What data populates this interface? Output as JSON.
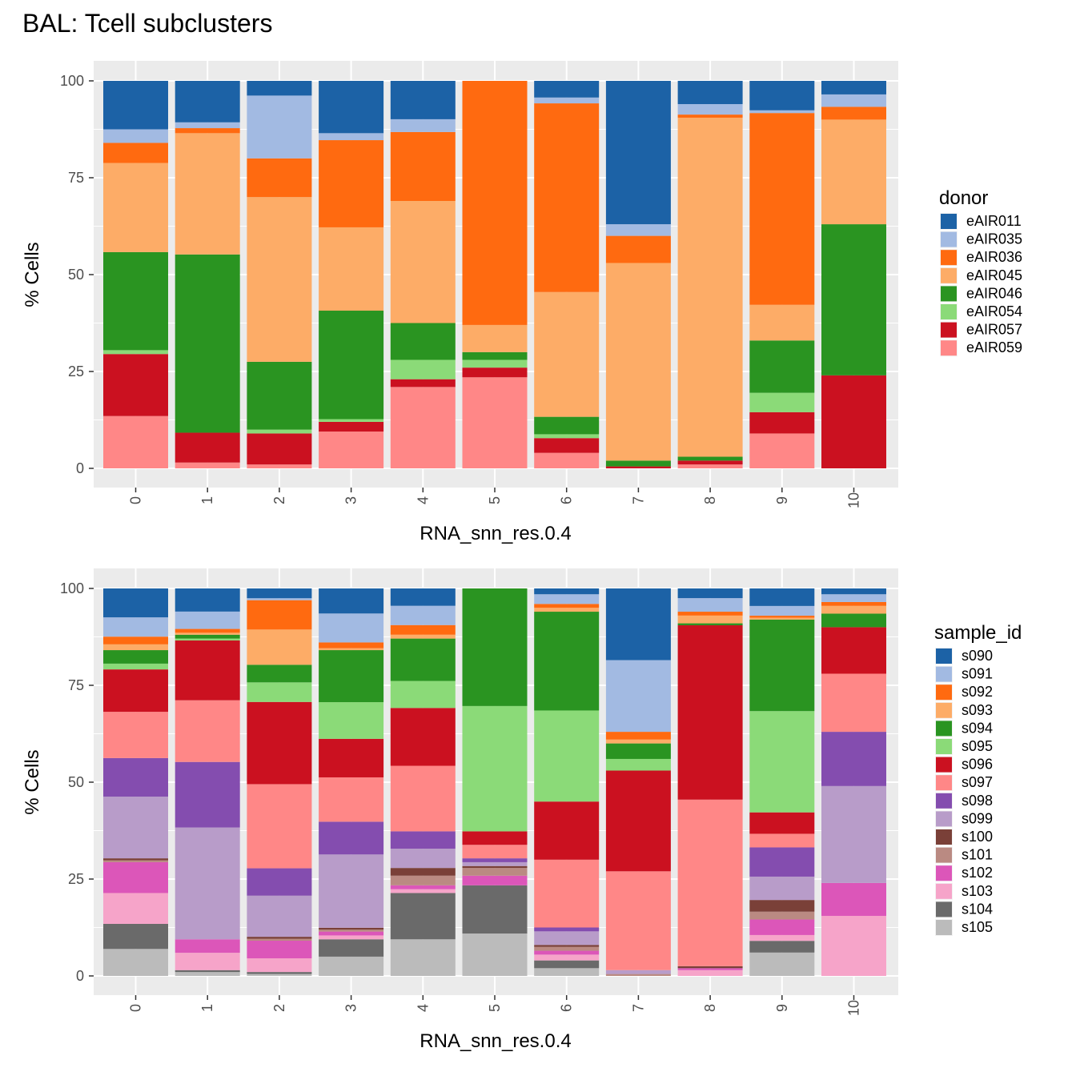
{
  "title": "BAL: Tcell subclusters",
  "charts": [
    {
      "type": "bar",
      "stacked": true,
      "xlabel": "RNA_snn_res.0.4",
      "ylabel": "% Cells",
      "ylim": [
        0,
        100
      ],
      "yticks": [
        "0",
        "25",
        "50",
        "75",
        "100"
      ],
      "categories": [
        "0",
        "1",
        "2",
        "3",
        "4",
        "5",
        "6",
        "7",
        "8",
        "9",
        "10"
      ],
      "legend_title": "donor",
      "legend_position": "right",
      "series": [
        {
          "name": "eAIR059",
          "color": "#FF8787",
          "values": [
            13.5,
            1.5,
            1.0,
            9.5,
            21.0,
            23.5,
            4.0,
            0.0,
            1.0,
            9.0,
            0.0
          ]
        },
        {
          "name": "eAIR057",
          "color": "#CB1120",
          "values": [
            16.0,
            7.7,
            8.0,
            2.5,
            2.0,
            2.5,
            3.8,
            0.5,
            1.0,
            5.5,
            24.0
          ]
        },
        {
          "name": "eAIR054",
          "color": "#8BDA78",
          "values": [
            1.0,
            0.0,
            1.0,
            0.7,
            5.0,
            2.0,
            1.0,
            0.0,
            0.0,
            5.0,
            0.0
          ]
        },
        {
          "name": "eAIR046",
          "color": "#2A9421",
          "values": [
            25.3,
            46.0,
            17.5,
            28.0,
            9.5,
            2.0,
            4.5,
            1.5,
            1.0,
            13.5,
            39.0
          ]
        },
        {
          "name": "eAIR045",
          "color": "#FDAC67",
          "values": [
            23.0,
            31.3,
            42.5,
            21.5,
            31.5,
            7.0,
            32.2,
            51.0,
            87.5,
            9.2,
            27.0
          ]
        },
        {
          "name": "eAIR036",
          "color": "#FF6A10",
          "values": [
            5.2,
            1.3,
            10.0,
            22.5,
            17.8,
            63.0,
            48.7,
            7.0,
            0.8,
            49.5,
            3.3
          ]
        },
        {
          "name": "eAIR035",
          "color": "#A2BAE2",
          "values": [
            3.5,
            1.5,
            16.2,
            1.8,
            3.3,
            0.0,
            1.5,
            3.0,
            2.7,
            0.7,
            3.2
          ]
        },
        {
          "name": "eAIR011",
          "color": "#1C62A6",
          "values": [
            12.5,
            10.7,
            3.8,
            13.5,
            9.9,
            0.0,
            4.3,
            37.0,
            6.0,
            7.6,
            3.5
          ]
        }
      ]
    },
    {
      "type": "bar",
      "stacked": true,
      "xlabel": "RNA_snn_res.0.4",
      "ylabel": "% Cells",
      "ylim": [
        0,
        100
      ],
      "yticks": [
        "0",
        "25",
        "50",
        "75",
        "100"
      ],
      "categories": [
        "0",
        "1",
        "2",
        "3",
        "4",
        "5",
        "6",
        "7",
        "8",
        "9",
        "10"
      ],
      "legend_title": "sample_id",
      "legend_position": "right",
      "series": [
        {
          "name": "s105",
          "color": "#BBBBBB",
          "values": [
            7.0,
            1.0,
            0.5,
            5.0,
            9.5,
            11.0,
            2.0,
            0.0,
            0.0,
            6.0,
            0.0
          ]
        },
        {
          "name": "s104",
          "color": "#6A6A6A",
          "values": [
            6.5,
            0.5,
            0.5,
            4.5,
            12.0,
            12.5,
            2.0,
            0.0,
            0.0,
            3.0,
            0.0
          ]
        },
        {
          "name": "s103",
          "color": "#F6A4C9",
          "values": [
            8.0,
            4.5,
            3.5,
            1.0,
            1.0,
            0.0,
            1.5,
            0.0,
            1.5,
            1.5,
            15.5
          ]
        },
        {
          "name": "s102",
          "color": "#DC56B9",
          "values": [
            8.0,
            3.5,
            4.5,
            1.0,
            1.0,
            2.5,
            1.0,
            0.0,
            0.5,
            4.0,
            8.5
          ]
        },
        {
          "name": "s101",
          "color": "#BA8A82",
          "values": [
            0.5,
            0.0,
            0.5,
            0.5,
            2.5,
            2.0,
            1.0,
            0.5,
            0.0,
            2.0,
            0.0
          ]
        },
        {
          "name": "s100",
          "color": "#7A4038",
          "values": [
            0.5,
            0.0,
            0.5,
            0.5,
            2.0,
            0.5,
            0.5,
            0.0,
            0.5,
            3.0,
            0.0
          ]
        },
        {
          "name": "s099",
          "color": "#B89CC9",
          "values": [
            16.0,
            29.0,
            10.5,
            19.0,
            5.0,
            1.0,
            3.5,
            1.0,
            0.0,
            6.0,
            25.0
          ]
        },
        {
          "name": "s098",
          "color": "#844DAF",
          "values": [
            10.0,
            17.0,
            7.0,
            8.5,
            4.5,
            1.0,
            1.0,
            0.0,
            0.0,
            7.5,
            14.0
          ]
        },
        {
          "name": "s097",
          "color": "#FF8787",
          "values": [
            12.0,
            16.0,
            21.5,
            11.5,
            17.0,
            3.5,
            17.5,
            25.5,
            43.0,
            3.5,
            15.0
          ]
        },
        {
          "name": "s096",
          "color": "#CB1120",
          "values": [
            11.0,
            15.5,
            21.0,
            10.0,
            15.0,
            3.5,
            15.0,
            26.0,
            45.0,
            5.5,
            12.0
          ]
        },
        {
          "name": "s095",
          "color": "#8BDA78",
          "values": [
            1.5,
            0.5,
            5.0,
            9.5,
            7.0,
            32.5,
            23.5,
            3.0,
            0.0,
            26.0,
            0.0
          ]
        },
        {
          "name": "s094",
          "color": "#2A9421",
          "values": [
            3.5,
            1.0,
            4.5,
            13.5,
            11.0,
            30.5,
            25.5,
            4.0,
            0.5,
            23.5,
            3.5
          ]
        },
        {
          "name": "s093",
          "color": "#FDAC67",
          "values": [
            1.5,
            0.5,
            9.0,
            0.5,
            1.0,
            0.0,
            1.0,
            1.0,
            2.0,
            0.5,
            2.0
          ]
        },
        {
          "name": "s092",
          "color": "#FF6A10",
          "values": [
            2.0,
            1.0,
            7.5,
            1.5,
            2.5,
            0.0,
            1.0,
            2.0,
            1.0,
            0.5,
            1.0
          ]
        },
        {
          "name": "s091",
          "color": "#A2BAE2",
          "values": [
            5.0,
            4.5,
            0.5,
            7.5,
            5.0,
            0.0,
            2.5,
            18.5,
            3.5,
            2.5,
            2.0
          ]
        },
        {
          "name": "s090",
          "color": "#1C62A6",
          "values": [
            7.5,
            6.0,
            2.5,
            6.5,
            4.5,
            0.0,
            1.5,
            18.5,
            2.5,
            4.5,
            1.5
          ]
        }
      ]
    }
  ]
}
